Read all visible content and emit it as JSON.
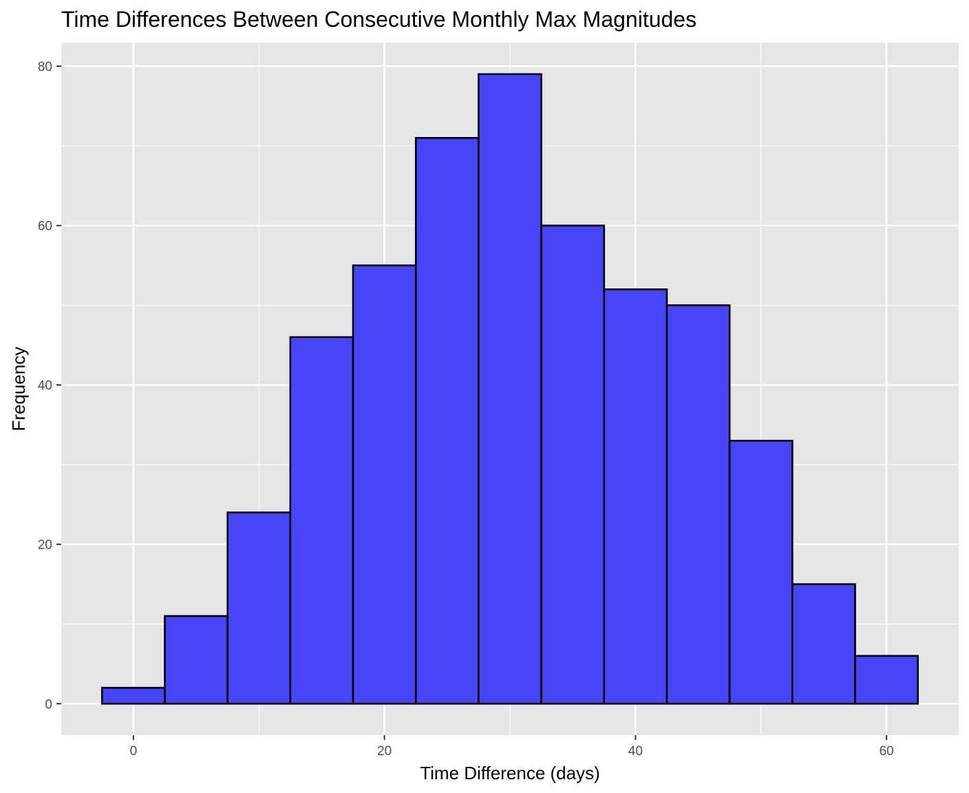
{
  "chart_data": {
    "type": "bar",
    "title": "Time Differences Between Consecutive Monthly Max Magnitudes",
    "xlabel": "Time Difference (days)",
    "ylabel": "Frequency",
    "bins": [
      {
        "x0": -2.5,
        "x1": 2.5,
        "count": 2
      },
      {
        "x0": 2.5,
        "x1": 7.5,
        "count": 11
      },
      {
        "x0": 7.5,
        "x1": 12.5,
        "count": 24
      },
      {
        "x0": 12.5,
        "x1": 17.5,
        "count": 46
      },
      {
        "x0": 17.5,
        "x1": 22.5,
        "count": 55
      },
      {
        "x0": 22.5,
        "x1": 27.5,
        "count": 71
      },
      {
        "x0": 27.5,
        "x1": 32.5,
        "count": 79
      },
      {
        "x0": 32.5,
        "x1": 37.5,
        "count": 60
      },
      {
        "x0": 37.5,
        "x1": 42.5,
        "count": 52
      },
      {
        "x0": 42.5,
        "x1": 47.5,
        "count": 50
      },
      {
        "x0": 47.5,
        "x1": 52.5,
        "count": 33
      },
      {
        "x0": 52.5,
        "x1": 57.5,
        "count": 15
      },
      {
        "x0": 57.5,
        "x1": 62.5,
        "count": 6
      }
    ],
    "xlim": [
      -5.75,
      65.75
    ],
    "ylim": [
      -3.95,
      82.95
    ],
    "x_ticks": [
      {
        "value": 0,
        "label": "0"
      },
      {
        "value": 20,
        "label": "20"
      },
      {
        "value": 40,
        "label": "40"
      },
      {
        "value": 60,
        "label": "60"
      }
    ],
    "y_ticks": [
      {
        "value": 0,
        "label": "0"
      },
      {
        "value": 20,
        "label": "20"
      },
      {
        "value": 40,
        "label": "40"
      },
      {
        "value": 60,
        "label": "60"
      },
      {
        "value": 80,
        "label": "80"
      }
    ],
    "grid": true,
    "colors": {
      "panel": "#e5e5e5",
      "grid": "#ffffff",
      "bar_fill": "#4646f8",
      "bar_stroke": "#000000"
    }
  }
}
